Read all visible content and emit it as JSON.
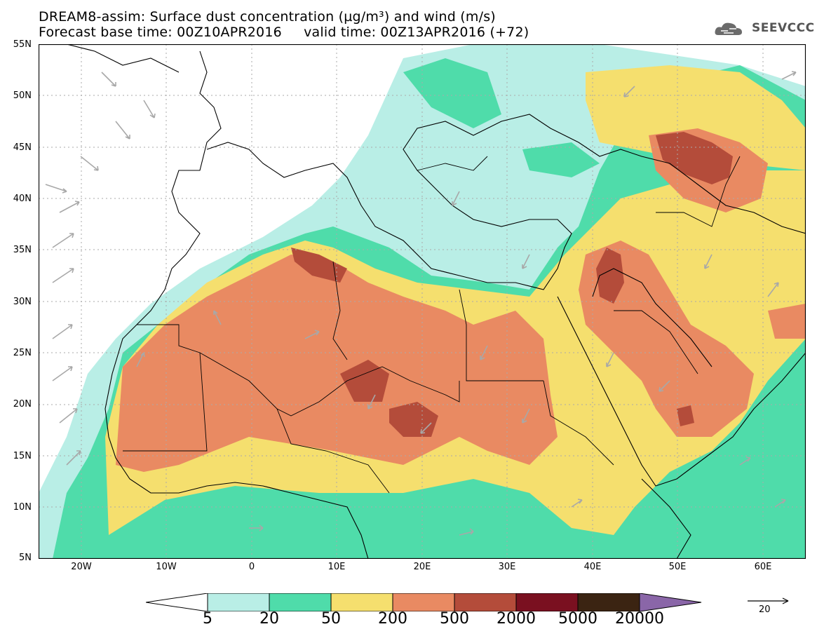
{
  "title": {
    "line1": "DREAM8-assim: Surface dust concentration (µg/m³) and wind (m/s)",
    "line2": "Forecast base time: 00Z10APR2016     valid time: 00Z13APR2016 (+72)"
  },
  "logo": {
    "text": "SEEVCCC",
    "icon": "cloud-icon"
  },
  "map": {
    "lat_range": [
      5,
      55
    ],
    "lon_range": [
      -25,
      65
    ],
    "lat_labels": [
      "55N",
      "50N",
      "45N",
      "40N",
      "35N",
      "30N",
      "25N",
      "20N",
      "15N",
      "10N",
      "5N"
    ],
    "lon_labels": [
      "20W",
      "10W",
      "0",
      "10E",
      "20E",
      "30E",
      "40E",
      "50E",
      "60E"
    ],
    "grid": true
  },
  "colorbar": {
    "labels": [
      "5",
      "20",
      "50",
      "200",
      "500",
      "2000",
      "5000",
      "20000"
    ],
    "colors": [
      "#ffffff",
      "#b9eee6",
      "#4fdcaa",
      "#f5df6e",
      "#e98a62",
      "#b44c3a",
      "#7a1020",
      "#3b2412",
      "#8a66a8"
    ]
  },
  "wind_reference": {
    "label": "20"
  }
}
